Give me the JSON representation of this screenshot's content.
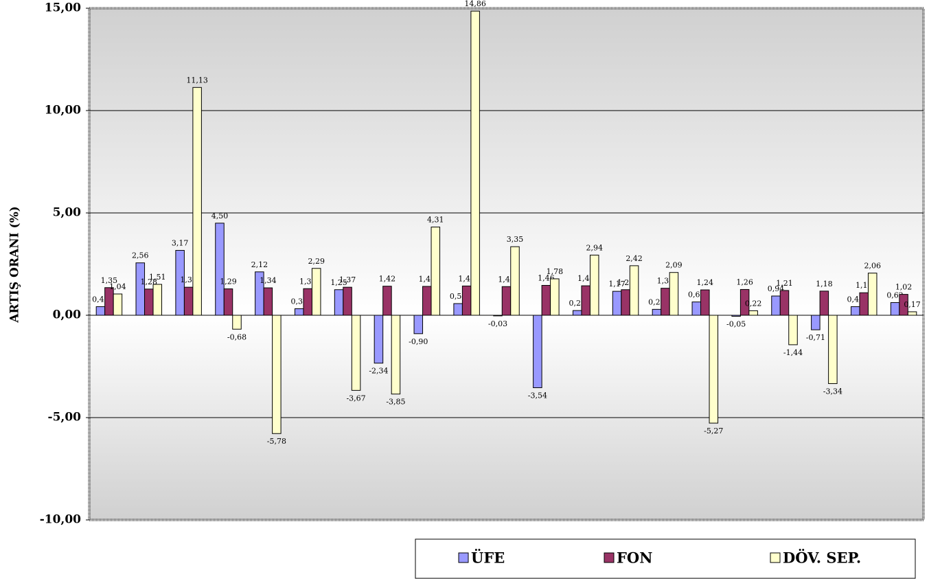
{
  "chart_data": {
    "type": "bar",
    "y_label": "ARTIŞ ORANI (%)",
    "ylim": [
      -10,
      15
    ],
    "yticks": [
      {
        "value": -10,
        "label": "-10,00"
      },
      {
        "value": -5,
        "label": "-5,00"
      },
      {
        "value": 0,
        "label": "0,00"
      },
      {
        "value": 5,
        "label": "5,00"
      },
      {
        "value": 10,
        "label": "10,00"
      },
      {
        "value": 15,
        "label": "15,00"
      }
    ],
    "grid": true,
    "legend": "bottom-right",
    "series": [
      {
        "name": "ÜFE",
        "color": "#9999ff",
        "values": [
          0.42,
          2.56,
          3.17,
          4.5,
          2.12,
          0.32,
          1.25,
          -2.34,
          -0.9,
          0.57,
          -0.03,
          -3.54,
          0.23,
          1.17,
          0.29,
          0.65,
          -0.05,
          0.94,
          -0.71,
          0.42,
          0.62
        ],
        "value_labels": [
          "0,42",
          "2,56",
          "3,17",
          "4,50",
          "2,12",
          "0,32",
          "1,25",
          "-2,34",
          "-0,90",
          "0,57",
          "-0,03",
          "-3,54",
          "0,23",
          "1,17",
          "0,29",
          "0,65",
          "-0,05",
          "0,94",
          "-0,71",
          "0,42",
          "0,62"
        ]
      },
      {
        "name": "FON",
        "color": "#993366",
        "values": [
          1.35,
          1.28,
          1.37,
          1.29,
          1.34,
          1.3,
          1.37,
          1.42,
          1.41,
          1.43,
          1.4,
          1.46,
          1.44,
          1.25,
          1.32,
          1.24,
          1.26,
          1.21,
          1.18,
          1.1,
          1.02
        ],
        "value_labels": [
          "1,35",
          "1,28",
          "1,37",
          "1,29",
          "1,34",
          "1,30",
          "1,37",
          "1,42",
          "1,41",
          "1,43",
          "1,40",
          "1,46",
          "1,44",
          "1,25",
          "1,32",
          "1,24",
          "1,26",
          "1,21",
          "1,18",
          "1,10",
          "1,02"
        ]
      },
      {
        "name": "DÖV. SEP.",
        "color": "#ffffcc",
        "values": [
          1.04,
          1.51,
          11.13,
          -0.68,
          -5.78,
          2.29,
          -3.67,
          -3.85,
          4.31,
          14.86,
          3.35,
          1.78,
          2.94,
          2.42,
          2.09,
          -5.27,
          0.22,
          -1.44,
          -3.34,
          2.06,
          0.17
        ],
        "value_labels": [
          "1,04",
          "1,51",
          "11,13",
          "-0,68",
          "-5,78",
          "2,29",
          "-3,67",
          "-3,85",
          "4,31",
          "14,86",
          "3,35",
          "1,78",
          "2,94",
          "2,42",
          "2,09",
          "-5,27",
          "0,22",
          "-1,44",
          "-3,34",
          "2,06",
          "0,17"
        ]
      }
    ]
  }
}
